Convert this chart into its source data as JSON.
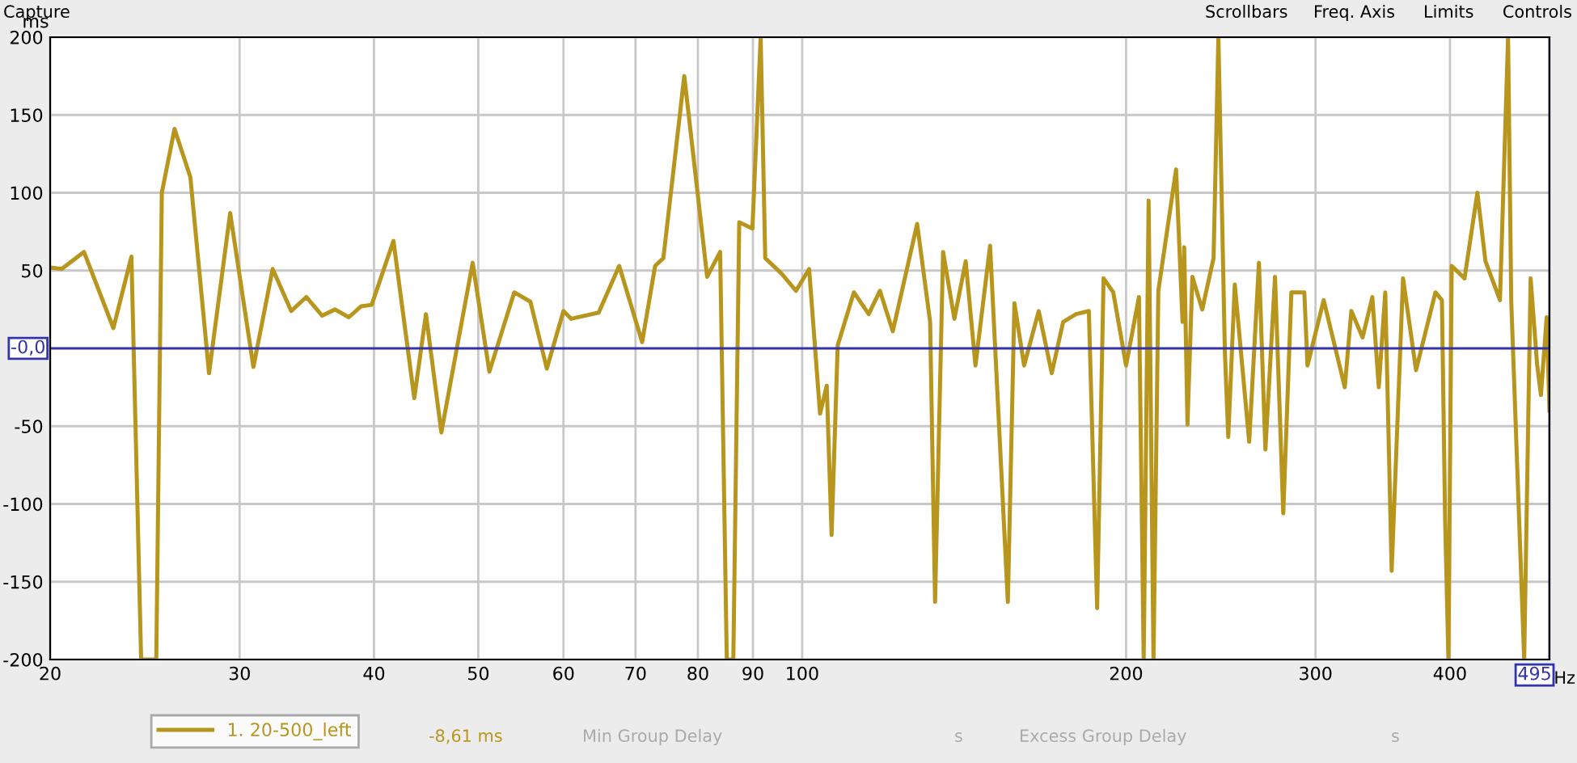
{
  "chart_data": {
    "type": "line",
    "xlabel": "Hz",
    "ylabel": "ms",
    "log": "x",
    "grid": true,
    "legend": "bottom",
    "marker": "none",
    "line_style": "solid",
    "xlim": [
      20,
      495
    ],
    "ylim": [
      -200,
      200
    ],
    "xticks": [
      20,
      30,
      40,
      50,
      60,
      70,
      80,
      90,
      100,
      200,
      300,
      400
    ],
    "yticks": [
      -200,
      -150,
      -100,
      -50,
      50,
      100,
      150,
      200
    ],
    "ref_lines": [
      {
        "axis": "y",
        "value": 0,
        "label": "-0,0",
        "color": "#3333aa"
      },
      {
        "axis": "x",
        "value": 495,
        "label": "495",
        "color": "#3333aa"
      }
    ],
    "annotations": [
      "-8,61 ms",
      "Min Group Delay",
      "s",
      "Excess Group Delay",
      "s",
      "Capture",
      "Scrollbars",
      "Freq. Axis",
      "Limits",
      "Controls"
    ],
    "series": [
      {
        "name": "1. 20-500_left",
        "color": "#b8961e",
        "x": [
          20.0,
          20.5,
          21.5,
          22.9,
          23.8,
          24.3,
          25.1,
          25.4,
          26.1,
          27.0,
          28.1,
          29.4,
          30.9,
          32.2,
          33.5,
          34.6,
          35.8,
          36.8,
          37.9,
          38.9,
          39.8,
          41.7,
          43.6,
          44.7,
          46.2,
          49.4,
          51.2,
          54.0,
          55.9,
          57.9,
          60.0,
          61.0,
          64.7,
          67.6,
          71.0,
          73.0,
          74.3,
          77.7,
          81.6,
          83.9,
          85.1,
          86.3,
          87.4,
          89.9,
          91.5,
          92.4,
          95.7,
          98.7,
          101.5,
          103.9,
          105.4,
          106.5,
          107.9,
          111.7,
          115.3,
          118.1,
          121.4,
          127.9,
          131.5,
          132.9,
          135.2,
          138.5,
          141.9,
          144.9,
          149.5,
          155.3,
          157.5,
          160.8,
          165.9,
          170.6,
          174.8,
          179.7,
          184.7,
          188.0,
          190.6,
          194.6,
          200.0,
          205.6,
          207.7,
          209.9,
          212.1,
          214.3,
          222.6,
          225.7,
          226.5,
          228.1,
          230.5,
          235.4,
          241.2,
          243.7,
          247.1,
          248.9,
          252.4,
          260.3,
          265.8,
          269.5,
          275.1,
          280.0,
          284.9,
          292.9,
          294.9,
          305.3,
          319.4,
          323.9,
          331.8,
          338.8,
          343.5,
          348.3,
          353.1,
          361.8,
          372.0,
          387.8,
          393.2,
          395.9,
          398.7,
          401.5,
          412.7,
          424.2,
          431.6,
          445.2,
          453.0,
          456.1,
          468.9,
          475.4,
          482.0,
          486.0,
          492.0,
          495.0
        ],
        "values": [
          52,
          51,
          62,
          13,
          59,
          -200,
          -200,
          100,
          141,
          110,
          -16,
          87,
          -12,
          51,
          24,
          33,
          21,
          25,
          20,
          27,
          28,
          69,
          -32,
          22,
          -54,
          55,
          -15,
          36,
          30,
          -13,
          24,
          19,
          23,
          53,
          4,
          53,
          58,
          175,
          46,
          62,
          -200,
          -200,
          81,
          77,
          200,
          58,
          48,
          37,
          51,
          -42,
          -24,
          -120,
          2,
          36,
          22,
          37,
          11,
          80,
          17,
          -163,
          62,
          19,
          56,
          -11,
          66,
          -163,
          29,
          -11,
          24,
          -16,
          17,
          22,
          24,
          -167,
          45,
          36,
          -11,
          33,
          -200,
          95,
          -200,
          37,
          115,
          17,
          65,
          -49,
          46,
          25,
          58,
          200,
          -2,
          -57,
          41,
          -60,
          55,
          -65,
          46,
          -106,
          36,
          36,
          -11,
          31,
          -25,
          24,
          7,
          33,
          -25,
          36,
          -143,
          45,
          -14,
          36,
          31,
          -110,
          -200,
          53,
          45,
          100,
          56,
          31,
          200,
          30,
          -200,
          45,
          -10,
          -30,
          20,
          -40
        ]
      }
    ]
  }
}
